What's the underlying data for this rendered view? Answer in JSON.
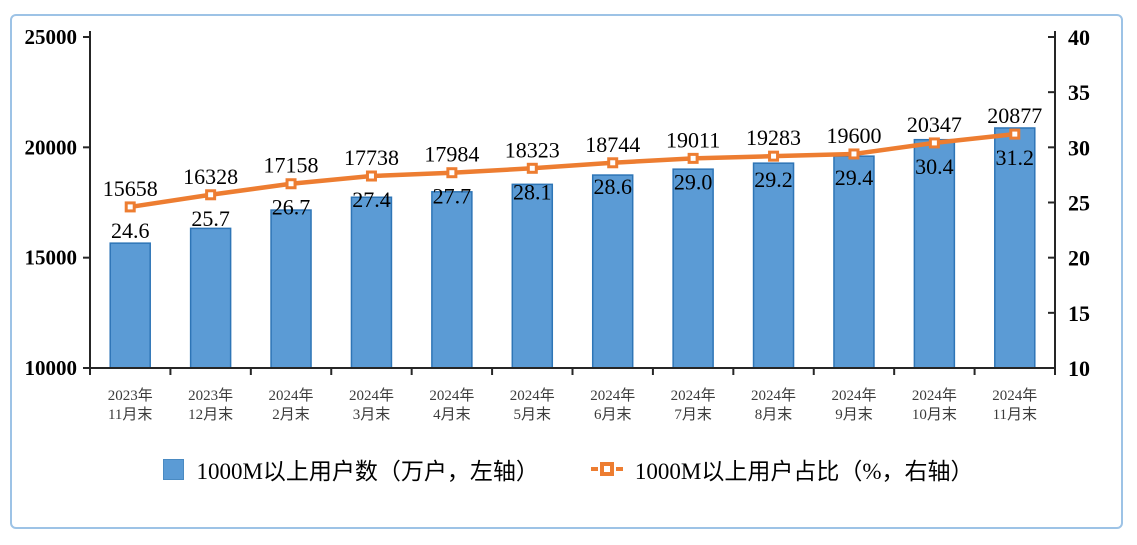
{
  "panel": {
    "background": "#FFFFFF",
    "border_color": "#9DC3E6"
  },
  "chart_data": {
    "type": "combo",
    "title": "",
    "grid": false,
    "legend_position": "bottom",
    "categories": [
      [
        "2023年",
        "11月末"
      ],
      [
        "2023年",
        "12月末"
      ],
      [
        "2024年",
        "2月末"
      ],
      [
        "2024年",
        "3月末"
      ],
      [
        "2024年",
        "4月末"
      ],
      [
        "2024年",
        "5月末"
      ],
      [
        "2024年",
        "6月末"
      ],
      [
        "2024年",
        "7月末"
      ],
      [
        "2024年",
        "8月末"
      ],
      [
        "2024年",
        "9月末"
      ],
      [
        "2024年",
        "10月末"
      ],
      [
        "2024年",
        "11月末"
      ]
    ],
    "series": [
      {
        "name": "1000M以上用户数（万户，左轴）",
        "type": "bar",
        "axis": "left",
        "color": "#5B9BD5",
        "border_color": "#2E75B6",
        "values": [
          15658,
          16328,
          17158,
          17738,
          17984,
          18323,
          18744,
          19011,
          19283,
          19600,
          20347,
          20877
        ],
        "labels": [
          "15658",
          "16328",
          "17158",
          "17738",
          "17984",
          "18323",
          "18744",
          "19011",
          "19283",
          "19600",
          "20347",
          "20877"
        ]
      },
      {
        "name": "1000M以上用户占比（%，右轴）",
        "type": "line",
        "axis": "right",
        "color": "#ED7D31",
        "marker": "hollow-square",
        "values": [
          24.6,
          25.7,
          26.7,
          27.4,
          27.7,
          28.1,
          28.6,
          29.0,
          29.2,
          29.4,
          30.4,
          31.2
        ],
        "labels": [
          "24.6",
          "25.7",
          "26.7",
          "27.4",
          "27.7",
          "28.1",
          "28.6",
          "29.0",
          "29.2",
          "29.4",
          "30.4",
          "31.2"
        ]
      }
    ],
    "left_axis": {
      "min": 10000,
      "max": 25000,
      "ticks": [
        "10000",
        "15000",
        "20000",
        "25000"
      ]
    },
    "right_axis": {
      "min": 10,
      "max": 40,
      "ticks": [
        "10",
        "15",
        "20",
        "25",
        "30",
        "35",
        "40"
      ]
    },
    "axis_color": "#262626"
  }
}
